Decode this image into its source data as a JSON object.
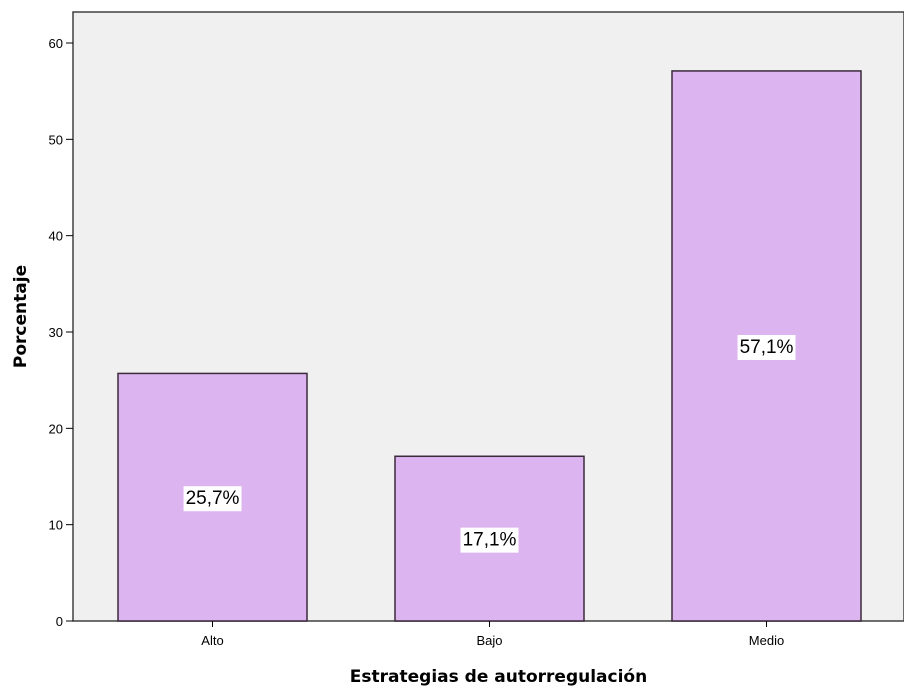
{
  "chart_data": {
    "type": "bar",
    "categories": [
      "Alto",
      "Bajo",
      "Medio"
    ],
    "values": [
      25.7,
      17.1,
      57.1
    ],
    "data_labels": [
      "25,7%",
      "17,1%",
      "57,1%"
    ],
    "xlabel": "Estrategias de autorregulación",
    "ylabel": "Porcentaje",
    "ylim": [
      0,
      60
    ],
    "yticks": [
      0,
      10,
      20,
      30,
      40,
      50,
      60
    ],
    "grid": false,
    "legend": "none",
    "colors": {
      "bar_fill": "#dcb4f0",
      "bar_stroke": "#3a2a3a",
      "plot_background": "#f0f0f0",
      "label_background": "#ffffff"
    }
  }
}
